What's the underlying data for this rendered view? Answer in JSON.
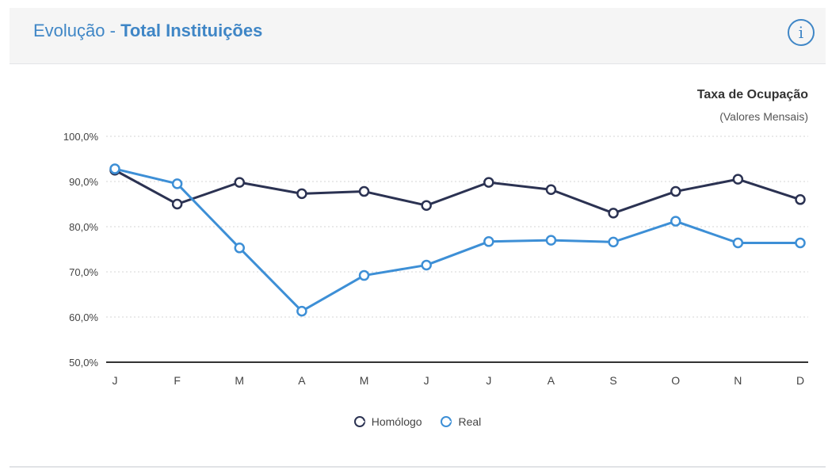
{
  "header": {
    "title_prefix": "Evolução - ",
    "title_strong": "Total Instituições",
    "info_glyph": "i",
    "info_icon": "info-circle-icon"
  },
  "chart_data": {
    "type": "line",
    "title": "Taxa de Ocupação",
    "subtitle": "(Valores Mensais)",
    "categories": [
      "J",
      "F",
      "M",
      "A",
      "M",
      "J",
      "J",
      "A",
      "S",
      "O",
      "N",
      "D"
    ],
    "y_ticks": [
      "100,0%",
      "90,0%",
      "80,0%",
      "70,0%",
      "60,0%",
      "50,0%"
    ],
    "ylim": [
      50,
      100
    ],
    "grid": true,
    "legend_position": "bottom",
    "series": [
      {
        "name": "Homólogo",
        "color": "#2b3252",
        "values": [
          92.5,
          85.0,
          89.8,
          87.3,
          87.8,
          84.7,
          89.8,
          88.2,
          83.0,
          87.8,
          90.5,
          86.0
        ]
      },
      {
        "name": "Real",
        "color": "#3d8fd6",
        "values": [
          92.8,
          89.5,
          75.3,
          61.3,
          69.2,
          71.5,
          76.7,
          77.0,
          76.6,
          81.2,
          76.4,
          76.4
        ]
      }
    ]
  },
  "colors": {
    "accent": "#3f86c6",
    "homologo": "#2b3252",
    "real": "#3d8fd6",
    "grid": "#d5d5d5"
  }
}
